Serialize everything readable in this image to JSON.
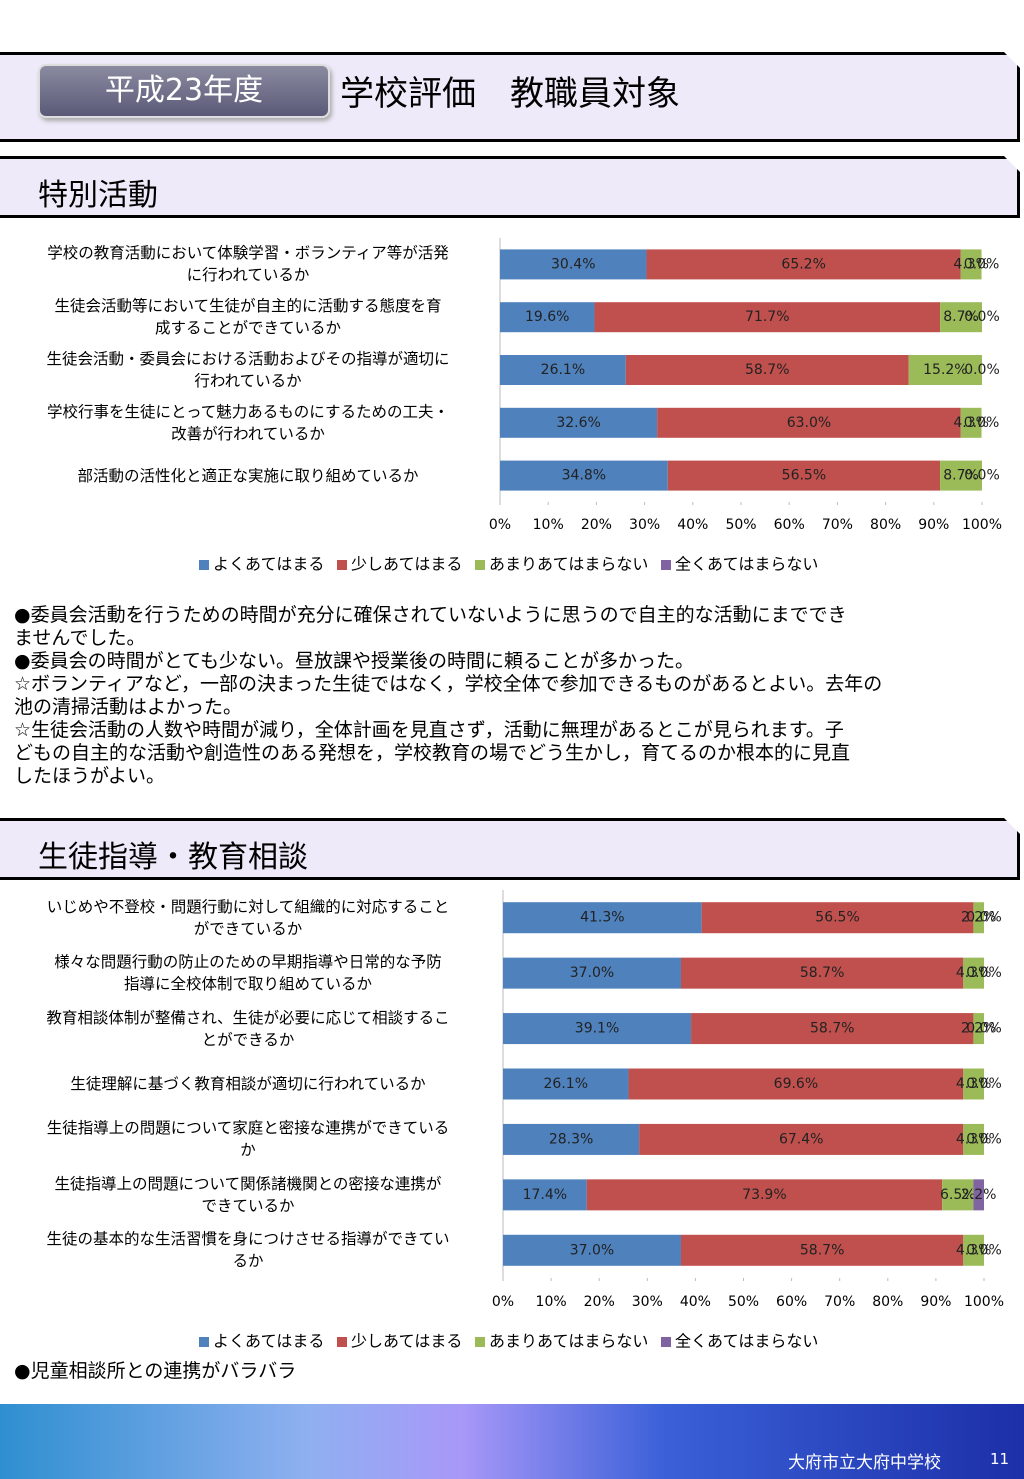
{
  "header": {
    "year": "平成23年度",
    "title": "学校評価　教職員対象"
  },
  "sections": [
    {
      "title": "特別活動",
      "notes": [
        "●委員会活動を行うための時間が充分に確保されていないように思うので自主的な活動にまででき\nませんでした。",
        "●委員会の時間がとても少ない。昼放課や授業後の時間に頼ることが多かった。",
        "☆ボランティアなど，一部の決まった生徒ではなく，学校全体で参加できるものがあるとよい。去年の\n池の清掃活動はよかった。",
        "☆生徒会活動の人数や時間が減り，全体計画を見直さず，活動に無理があるとこが見られます。子\nどもの自主的な活動や創造性のある発想を，学校教育の場でどう生かし，育てるのか根本的に見直\nしたほうがよい。"
      ]
    },
    {
      "title": "生徒指導・教育相談",
      "notes": [
        "●児童相談所との連携がバラバラ"
      ]
    }
  ],
  "chart_data": [
    {
      "type": "stacked-barh",
      "categories": [
        "学校の教育活動において体験学習・ボランティア等が活発\nに行われているか",
        "生徒会活動等において生徒が自主的に活動する態度を育\n成することができているか",
        "生徒会活動・委員会における活動およびその指導が適切に\n行われているか",
        "学校行事を生徒にとって魅力あるものにするための工夫・\n改善が行われているか",
        "部活動の活性化と適正な実施に取り組めているか"
      ],
      "series": [
        {
          "name": "よくあてはまる",
          "color": "#4f81bd",
          "values": [
            30.4,
            19.6,
            26.1,
            32.6,
            34.8
          ],
          "value_labels": [
            "30.4%",
            "19.6%",
            "26.1%",
            "32.6%",
            "34.8%"
          ]
        },
        {
          "name": "少しあてはまる",
          "color": "#c0504d",
          "values": [
            65.2,
            71.7,
            58.7,
            63.0,
            56.5
          ],
          "value_labels": [
            "65.2%",
            "71.7%",
            "58.7%",
            "63.0%",
            "56.5%"
          ]
        },
        {
          "name": "あまりあてはまらない",
          "color": "#9bbb59",
          "values": [
            4.3,
            8.7,
            15.2,
            4.3,
            8.7
          ],
          "value_labels": [
            "4.3%",
            "8.7%",
            "15.2%",
            "4.3%",
            "8.7%"
          ]
        },
        {
          "name": "全くあてはまらない",
          "color": "#8064a2",
          "values": [
            0.0,
            0.0,
            0.0,
            0.0,
            0.0
          ],
          "value_labels": [
            "0.0%",
            "0.0%",
            "0.0%",
            "0.0%",
            "0.0%"
          ]
        }
      ],
      "xlim": [
        0,
        100
      ],
      "xticks": [
        {
          "value": 0,
          "label": "0%"
        },
        {
          "value": 10,
          "label": "10%"
        },
        {
          "value": 20,
          "label": "20%"
        },
        {
          "value": 30,
          "label": "30%"
        },
        {
          "value": 40,
          "label": "40%"
        },
        {
          "value": 50,
          "label": "50%"
        },
        {
          "value": 60,
          "label": "60%"
        },
        {
          "value": 70,
          "label": "70%"
        },
        {
          "value": 80,
          "label": "80%"
        },
        {
          "value": 90,
          "label": "90%"
        },
        {
          "value": 100,
          "label": "100%"
        }
      ],
      "legend": "bottom"
    },
    {
      "type": "stacked-barh",
      "categories": [
        "いじめや不登校・問題行動に対して組織的に対応すること\nができているか",
        "様々な問題行動の防止のための早期指導や日常的な予防\n指導に全校体制で取り組めているか",
        "教育相談体制が整備され、生徒が必要に応じて相談するこ\nとができるか",
        "生徒理解に基づく教育相談が適切に行われているか",
        "生徒指導上の問題について家庭と密接な連携ができている\nか",
        "生徒指導上の問題について関係諸機関との密接な連携が\nできているか",
        "生徒の基本的な生活習慣を身につけさせる指導ができてい\nるか"
      ],
      "series": [
        {
          "name": "よくあてはまる",
          "color": "#4f81bd",
          "values": [
            41.3,
            37.0,
            39.1,
            26.1,
            28.3,
            17.4,
            37.0
          ],
          "value_labels": [
            "41.3%",
            "37.0%",
            "39.1%",
            "26.1%",
            "28.3%",
            "17.4%",
            "37.0%"
          ]
        },
        {
          "name": "少しあてはまる",
          "color": "#c0504d",
          "values": [
            56.5,
            58.7,
            58.7,
            69.6,
            67.4,
            73.9,
            58.7
          ],
          "value_labels": [
            "56.5%",
            "58.7%",
            "58.7%",
            "69.6%",
            "67.4%",
            "73.9%",
            "58.7%"
          ]
        },
        {
          "name": "あまりあてはまらない",
          "color": "#9bbb59",
          "values": [
            2.2,
            4.3,
            2.2,
            4.3,
            4.3,
            6.5,
            4.3
          ],
          "value_labels": [
            "2.2%",
            "4.3%",
            "2.2%",
            "4.3%",
            "4.3%",
            "6.5%",
            "4.3%"
          ]
        },
        {
          "name": "全くあてはまらない",
          "color": "#8064a2",
          "values": [
            0.0,
            0.0,
            0.0,
            0.0,
            0.0,
            2.2,
            0.0
          ],
          "value_labels": [
            "0.0%",
            "0.0%",
            "0.0%",
            "0.0%",
            "0.0%",
            "2.2%",
            "0.0%"
          ]
        }
      ],
      "xlim": [
        0,
        100
      ],
      "xticks": [
        {
          "value": 0,
          "label": "0%"
        },
        {
          "value": 10,
          "label": "10%"
        },
        {
          "value": 20,
          "label": "20%"
        },
        {
          "value": 30,
          "label": "30%"
        },
        {
          "value": 40,
          "label": "40%"
        },
        {
          "value": 50,
          "label": "50%"
        },
        {
          "value": 60,
          "label": "60%"
        },
        {
          "value": 70,
          "label": "70%"
        },
        {
          "value": 80,
          "label": "80%"
        },
        {
          "value": 90,
          "label": "90%"
        },
        {
          "value": 100,
          "label": "100%"
        }
      ],
      "legend": "bottom"
    }
  ],
  "footer": {
    "school": "大府市立大府中学校",
    "page": "11"
  }
}
